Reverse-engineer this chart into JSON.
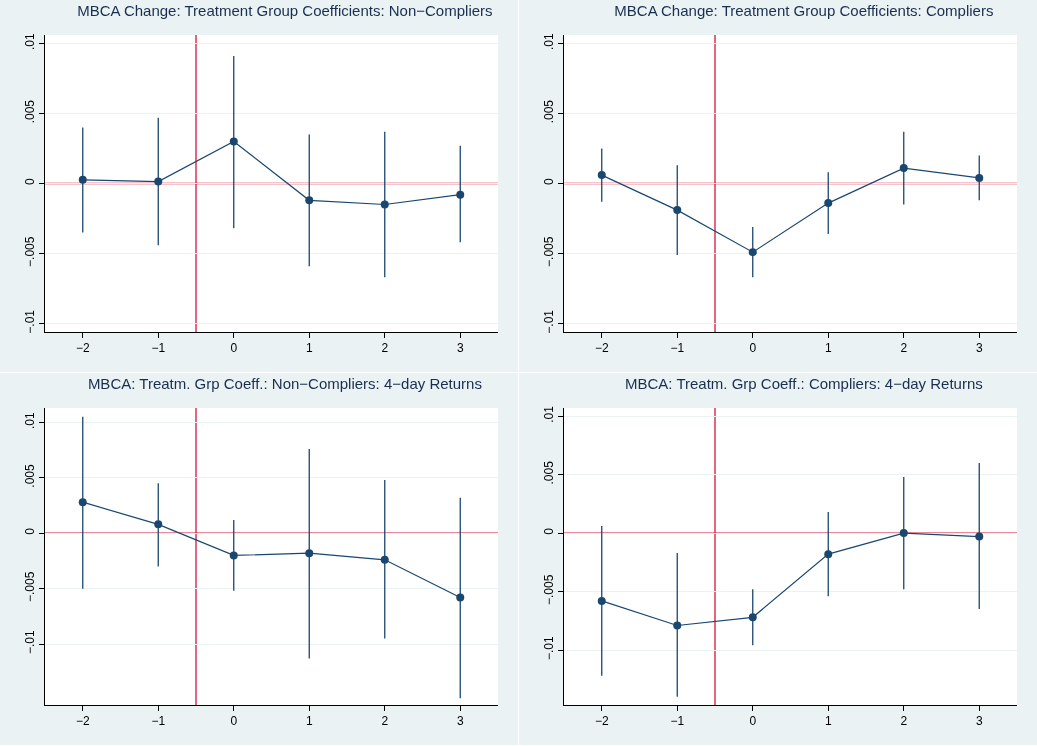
{
  "chart_data": [
    {
      "type": "line",
      "title": "MBCA Change: Treatment Group Coefficients: Non−Compliers",
      "x": [
        -2,
        -1,
        0,
        1,
        2,
        3
      ],
      "marker": "circle",
      "grid": "y",
      "series": [
        {
          "color": "#1a476f",
          "values": [
            0.00026,
            0.00014,
            0.003,
            -0.0012,
            -0.0015,
            -0.0008
          ],
          "errors": [
            [
              -0.0035,
              0.004
            ],
            [
              -0.0044,
              0.0047
            ],
            [
              -0.0032,
              0.0091
            ],
            [
              -0.0059,
              0.0035
            ],
            [
              -0.0067,
              0.0037
            ],
            [
              -0.0042,
              0.0027
            ]
          ]
        }
      ],
      "xlim": [
        -2.5,
        3.5
      ],
      "xticks": [
        -2,
        -1,
        0,
        1,
        2,
        3
      ],
      "ylim": [
        -0.0106,
        0.0106
      ],
      "yticks": [
        {
          "value": -0.01,
          "label": "−.01"
        },
        {
          "value": -0.005,
          "label": "−.005"
        },
        {
          "value": 0,
          "label": "0"
        },
        {
          "value": 0.005,
          "label": ".005"
        },
        {
          "value": 0.01,
          "label": ".01"
        }
      ],
      "ref_lines": [
        {
          "axis": "x",
          "value": -0.5,
          "color": "#d2143a"
        },
        {
          "axis": "y",
          "value": 0,
          "color": "#d2143a"
        }
      ]
    },
    {
      "type": "line",
      "title": "MBCA Change: Treatment Group Coefficients: Compliers",
      "x": [
        -2,
        -1,
        0,
        1,
        2,
        3
      ],
      "marker": "circle",
      "grid": "y",
      "series": [
        {
          "color": "#1a476f",
          "values": [
            0.0006,
            -0.0019,
            -0.0049,
            -0.0014,
            0.0011,
            0.0004
          ],
          "errors": [
            [
              -0.0013,
              0.0025
            ],
            [
              -0.0051,
              0.0013
            ],
            [
              -0.0067,
              -0.0031
            ],
            [
              -0.0036,
              0.0008
            ],
            [
              -0.0015,
              0.0037
            ],
            [
              -0.0012,
              0.002
            ]
          ]
        }
      ],
      "xlim": [
        -2.5,
        3.5
      ],
      "xticks": [
        -2,
        -1,
        0,
        1,
        2,
        3
      ],
      "ylim": [
        -0.0106,
        0.0106
      ],
      "yticks": [
        {
          "value": -0.01,
          "label": "−.01"
        },
        {
          "value": -0.005,
          "label": "−.005"
        },
        {
          "value": 0,
          "label": "0"
        },
        {
          "value": 0.005,
          "label": ".005"
        },
        {
          "value": 0.01,
          "label": ".01"
        }
      ],
      "ref_lines": [
        {
          "axis": "x",
          "value": -0.5,
          "color": "#d2143a"
        },
        {
          "axis": "y",
          "value": 0,
          "color": "#d2143a"
        }
      ]
    },
    {
      "type": "line",
      "title": "MBCA: Treatm. Grp Coeff.: Non−Compliers: 4−day Returns",
      "x": [
        -2,
        -1,
        0,
        1,
        2,
        3
      ],
      "marker": "circle",
      "grid": "y",
      "series": [
        {
          "color": "#1a476f",
          "values": [
            0.0028,
            0.0008,
            -0.002,
            -0.0018,
            -0.0024,
            -0.0058
          ],
          "errors": [
            [
              -0.005,
              0.0105
            ],
            [
              -0.003,
              0.0045
            ],
            [
              -0.0052,
              0.0012
            ],
            [
              -0.0113,
              0.0076
            ],
            [
              -0.0095,
              0.0048
            ],
            [
              -0.0149,
              0.0032
            ]
          ]
        }
      ],
      "xlim": [
        -2.5,
        3.5
      ],
      "xticks": [
        -2,
        -1,
        0,
        1,
        2,
        3
      ],
      "ylim": [
        -0.0155,
        0.0113
      ],
      "yticks": [
        {
          "value": -0.01,
          "label": "−.01"
        },
        {
          "value": -0.005,
          "label": "−.005"
        },
        {
          "value": 0,
          "label": "0"
        },
        {
          "value": 0.005,
          "label": ".005"
        },
        {
          "value": 0.01,
          "label": ".01"
        }
      ],
      "ref_lines": [
        {
          "axis": "x",
          "value": -0.5,
          "color": "#d2143a"
        },
        {
          "axis": "y",
          "value": 0,
          "color": "#d2143a"
        }
      ]
    },
    {
      "type": "line",
      "title": "MBCA: Treatm. Grp Coeff.: Compliers: 4−day Returns",
      "x": [
        -2,
        -1,
        0,
        1,
        2,
        3
      ],
      "marker": "circle",
      "grid": "y",
      "series": [
        {
          "color": "#1a476f",
          "values": [
            -0.0058,
            -0.0079,
            -0.0072,
            -0.0018,
            0,
            -0.0003
          ],
          "errors": [
            [
              -0.0122,
              0.0006
            ],
            [
              -0.014,
              -0.0017
            ],
            [
              -0.0096,
              -0.0048
            ],
            [
              -0.0054,
              0.0018
            ],
            [
              -0.0048,
              0.0048
            ],
            [
              -0.0065,
              0.006
            ]
          ]
        }
      ],
      "xlim": [
        -2.5,
        3.5
      ],
      "xticks": [
        -2,
        -1,
        0,
        1,
        2,
        3
      ],
      "ylim": [
        -0.0147,
        0.0107
      ],
      "yticks": [
        {
          "value": -0.01,
          "label": "−.01"
        },
        {
          "value": -0.005,
          "label": "−.005"
        },
        {
          "value": 0,
          "label": "0"
        },
        {
          "value": 0.005,
          "label": ".005"
        },
        {
          "value": 0.01,
          "label": ".01"
        }
      ],
      "ref_lines": [
        {
          "axis": "x",
          "value": -0.5,
          "color": "#d2143a"
        },
        {
          "axis": "y",
          "value": 0,
          "color": "#d2143a"
        }
      ]
    }
  ]
}
